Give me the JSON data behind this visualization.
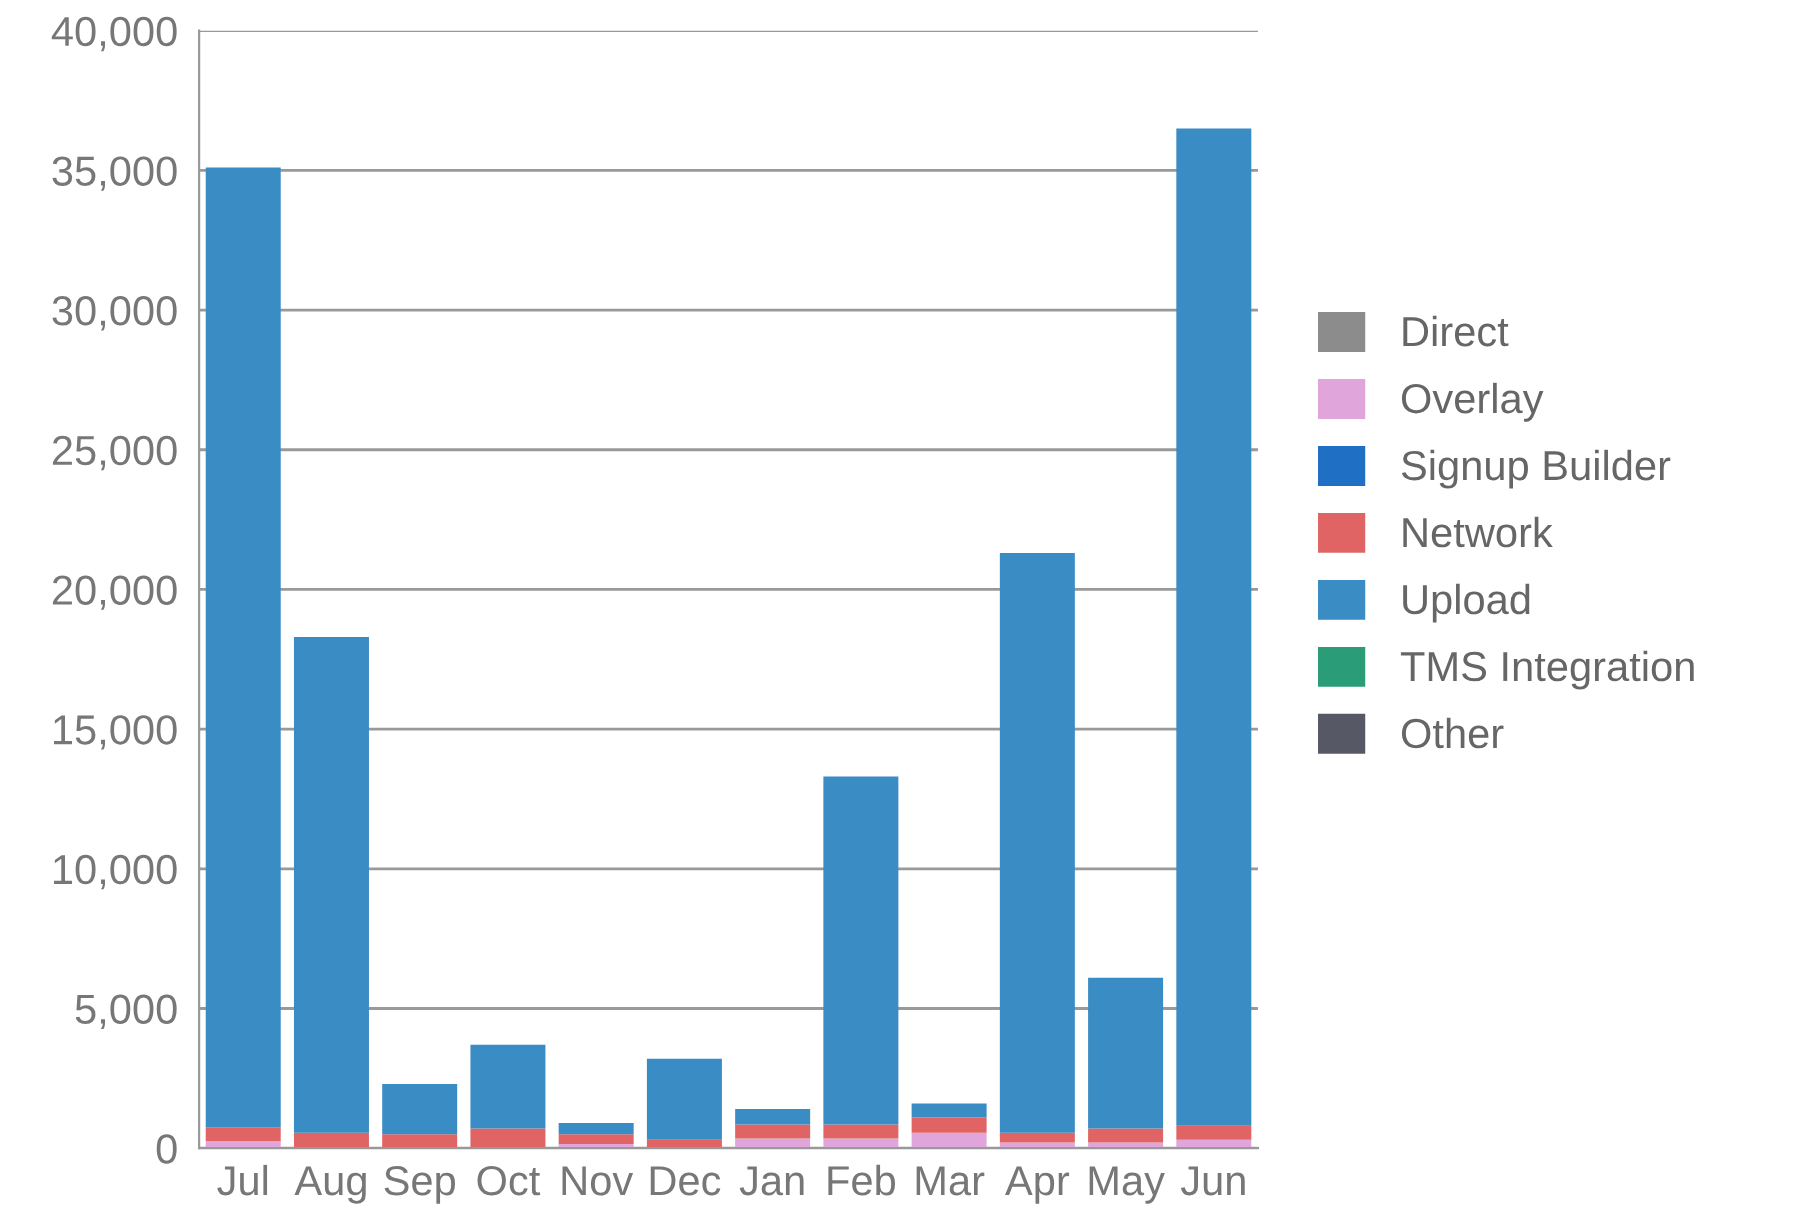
{
  "chart_data": {
    "type": "bar",
    "stacked": true,
    "categories": [
      "Jul",
      "Aug",
      "Sep",
      "Oct",
      "Nov",
      "Dec",
      "Jan",
      "Feb",
      "Mar",
      "Apr",
      "May",
      "Jun"
    ],
    "series": [
      {
        "name": "Direct",
        "color": "#8c8c8c",
        "values": [
          0,
          0,
          0,
          0,
          0,
          0,
          0,
          0,
          0,
          0,
          0,
          0
        ]
      },
      {
        "name": "Overlay",
        "color": "#e0a6dc",
        "values": [
          250,
          0,
          null,
          null,
          150,
          null,
          350,
          350,
          550,
          200,
          200,
          300
        ]
      },
      {
        "name": "Signup Builder",
        "color": "#1f6fc4",
        "values": [
          0,
          0,
          0,
          0,
          0,
          0,
          0,
          0,
          0,
          0,
          0,
          0
        ]
      },
      {
        "name": "Network",
        "color": "#e06464",
        "values": [
          500,
          550,
          500,
          700,
          350,
          300,
          500,
          500,
          550,
          350,
          500,
          500
        ]
      },
      {
        "name": "Upload",
        "color": "#3a8cc4",
        "values": [
          34350,
          17750,
          1800,
          3000,
          400,
          2900,
          550,
          12450,
          500,
          20750,
          5400,
          35700
        ]
      },
      {
        "name": "TMS Integration",
        "color": "#2a9d78",
        "values": [
          0,
          0,
          0,
          0,
          0,
          0,
          0,
          0,
          0,
          0,
          0,
          0
        ]
      },
      {
        "name": "Other",
        "color": "#565866",
        "values": [
          0,
          0,
          0,
          0,
          0,
          0,
          0,
          0,
          0,
          0,
          0,
          0
        ]
      }
    ],
    "ylim": [
      0,
      40000
    ],
    "yticks": [
      {
        "value": 0,
        "label": "0"
      },
      {
        "value": 5000,
        "label": "5,000"
      },
      {
        "value": 10000,
        "label": "10,000"
      },
      {
        "value": 15000,
        "label": "15,000"
      },
      {
        "value": 20000,
        "label": "20,000"
      },
      {
        "value": 25000,
        "label": "25,000"
      },
      {
        "value": 30000,
        "label": "30,000"
      },
      {
        "value": 35000,
        "label": "35,000"
      },
      {
        "value": 40000,
        "label": "40,000"
      }
    ],
    "grid": "y",
    "legend": "right"
  }
}
